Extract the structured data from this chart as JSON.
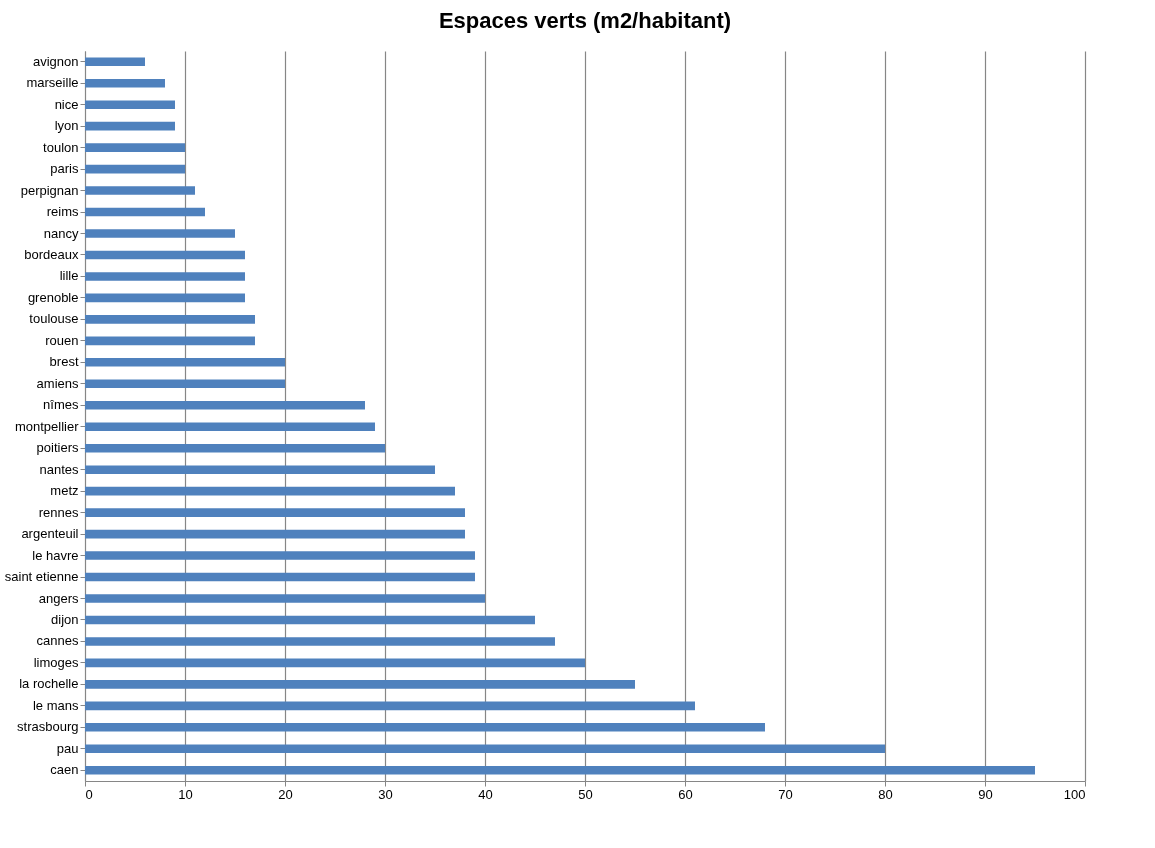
{
  "chart_data": {
    "type": "bar",
    "orientation": "horizontal",
    "title": "Espaces verts (m2/habitant)",
    "categories": [
      "avignon",
      "marseille",
      "nice",
      "lyon",
      "toulon",
      "paris",
      "perpignan",
      "reims",
      "nancy",
      "bordeaux",
      "lille",
      "grenoble",
      "toulouse",
      "rouen",
      "brest",
      "amiens",
      "nîmes",
      "montpellier",
      "poitiers",
      "nantes",
      "metz",
      "rennes",
      "argenteuil",
      "le havre",
      "saint etienne",
      "angers",
      "dijon",
      "cannes",
      "limoges",
      "la rochelle",
      "le mans",
      "strasbourg",
      "pau",
      "caen"
    ],
    "values": [
      6,
      8,
      9,
      9,
      10,
      10,
      11,
      12,
      15,
      16,
      16,
      16,
      17,
      17,
      20,
      20,
      28,
      29,
      30,
      35,
      37,
      38,
      38,
      39,
      39,
      40,
      45,
      47,
      50,
      55,
      61,
      68,
      80,
      95
    ],
    "color": "#4f81bd",
    "xlim": [
      0,
      100
    ],
    "xticks": [
      0,
      10,
      20,
      30,
      40,
      50,
      60,
      70,
      80,
      90,
      100
    ],
    "grid": "x"
  }
}
